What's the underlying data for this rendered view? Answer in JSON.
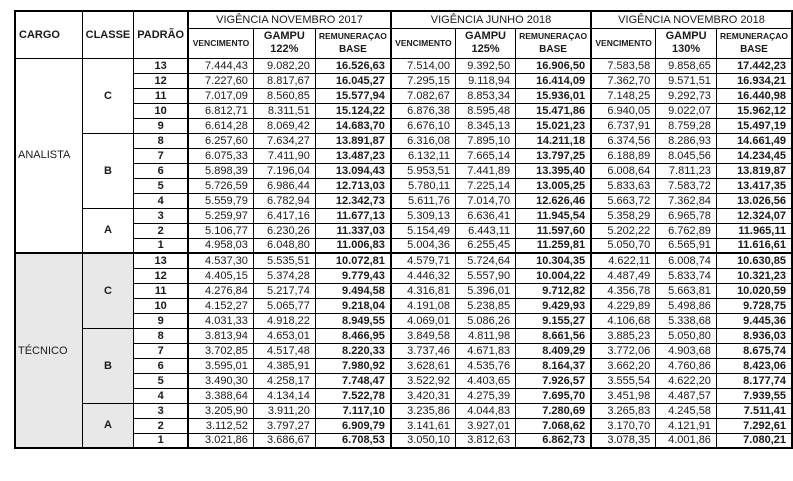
{
  "header": {
    "cargo": "CARGO",
    "classe": "CLASSE",
    "padrao": "PADRÃO",
    "periods": [
      {
        "title": "VIGÊNCIA NOVEMBRO 2017",
        "vencimento": "VENCIMENTO",
        "gampu": "GAMPU",
        "gampu_pct": "122%",
        "remuneracao": "REMUNERAÇAO",
        "base": "BASE"
      },
      {
        "title": "VIGÊNCIA JUNHO 2018",
        "vencimento": "VENCIMENTO",
        "gampu": "GAMPU",
        "gampu_pct": "125%",
        "remuneracao": "REMUNERAÇAO",
        "base": "BASE"
      },
      {
        "title": "VIGÊNCIA NOVEMBRO 2018",
        "vencimento": "VENCIMENTO",
        "gampu": "GAMPU",
        "gampu_pct": "130%",
        "remuneracao": "REMUNERAÇAO",
        "base": "BASE"
      }
    ]
  },
  "shaded_color": "#e8e8e8",
  "groups": [
    {
      "cargo": "ANALISTA",
      "shaded": false,
      "classes": [
        {
          "classe": "C",
          "rows": [
            {
              "padrao": "13",
              "values": [
                "7.444,43",
                "9.082,20",
                "16.526,63",
                "7.514,00",
                "9.392,50",
                "16.906,50",
                "7.583,58",
                "9.858,65",
                "17.442,23"
              ]
            },
            {
              "padrao": "12",
              "values": [
                "7.227,60",
                "8.817,67",
                "16.045,27",
                "7.295,15",
                "9.118,94",
                "16.414,09",
                "7.362,70",
                "9.571,51",
                "16.934,21"
              ]
            },
            {
              "padrao": "11",
              "values": [
                "7.017,09",
                "8.560,85",
                "15.577,94",
                "7.082,67",
                "8.853,34",
                "15.936,01",
                "7.148,25",
                "9.292,73",
                "16.440,98"
              ]
            },
            {
              "padrao": "10",
              "values": [
                "6.812,71",
                "8.311,51",
                "15.124,22",
                "6.876,38",
                "8.595,48",
                "15.471,86",
                "6.940,05",
                "9.022,07",
                "15.962,12"
              ]
            },
            {
              "padrao": "9",
              "values": [
                "6.614,28",
                "8.069,42",
                "14.683,70",
                "6.676,10",
                "8.345,13",
                "15.021,23",
                "6.737,91",
                "8.759,28",
                "15.497,19"
              ]
            }
          ]
        },
        {
          "classe": "B",
          "rows": [
            {
              "padrao": "8",
              "values": [
                "6.257,60",
                "7.634,27",
                "13.891,87",
                "6.316,08",
                "7.895,10",
                "14.211,18",
                "6.374,56",
                "8.286,93",
                "14.661,49"
              ]
            },
            {
              "padrao": "7",
              "values": [
                "6.075,33",
                "7.411,90",
                "13.487,23",
                "6.132,11",
                "7.665,14",
                "13.797,25",
                "6.188,89",
                "8.045,56",
                "14.234,45"
              ]
            },
            {
              "padrao": "6",
              "values": [
                "5.898,39",
                "7.196,04",
                "13.094,43",
                "5.953,51",
                "7.441,89",
                "13.395,40",
                "6.008,64",
                "7.811,23",
                "13.819,87"
              ]
            },
            {
              "padrao": "5",
              "values": [
                "5.726,59",
                "6.986,44",
                "12.713,03",
                "5.780,11",
                "7.225,14",
                "13.005,25",
                "5.833,63",
                "7.583,72",
                "13.417,35"
              ]
            },
            {
              "padrao": "4",
              "values": [
                "5.559,79",
                "6.782,94",
                "12.342,73",
                "5.611,76",
                "7.014,70",
                "12.626,46",
                "5.663,72",
                "7.362,84",
                "13.026,56"
              ]
            }
          ]
        },
        {
          "classe": "A",
          "rows": [
            {
              "padrao": "3",
              "values": [
                "5.259,97",
                "6.417,16",
                "11.677,13",
                "5.309,13",
                "6.636,41",
                "11.945,54",
                "5.358,29",
                "6.965,78",
                "12.324,07"
              ]
            },
            {
              "padrao": "2",
              "values": [
                "5.106,77",
                "6.230,26",
                "11.337,03",
                "5.154,49",
                "6.443,11",
                "11.597,60",
                "5.202,22",
                "6.762,89",
                "11.965,11"
              ]
            },
            {
              "padrao": "1",
              "values": [
                "4.958,03",
                "6.048,80",
                "11.006,83",
                "5.004,36",
                "6.255,45",
                "11.259,81",
                "5.050,70",
                "6.565,91",
                "11.616,61"
              ]
            }
          ]
        }
      ]
    },
    {
      "cargo": "TÉCNICO",
      "shaded": true,
      "classes": [
        {
          "classe": "C",
          "rows": [
            {
              "padrao": "13",
              "values": [
                "4.537,30",
                "5.535,51",
                "10.072,81",
                "4.579,71",
                "5.724,64",
                "10.304,35",
                "4.622,11",
                "6.008,74",
                "10.630,85"
              ]
            },
            {
              "padrao": "12",
              "values": [
                "4.405,15",
                "5.374,28",
                "9.779,43",
                "4.446,32",
                "5.557,90",
                "10.004,22",
                "4.487,49",
                "5.833,74",
                "10.321,23"
              ]
            },
            {
              "padrao": "11",
              "values": [
                "4.276,84",
                "5.217,74",
                "9.494,58",
                "4.316,81",
                "5.396,01",
                "9.712,82",
                "4.356,78",
                "5.663,81",
                "10.020,59"
              ]
            },
            {
              "padrao": "10",
              "values": [
                "4.152,27",
                "5.065,77",
                "9.218,04",
                "4.191,08",
                "5.238,85",
                "9.429,93",
                "4.229,89",
                "5.498,86",
                "9.728,75"
              ]
            },
            {
              "padrao": "9",
              "values": [
                "4.031,33",
                "4.918,22",
                "8.949,55",
                "4.069,01",
                "5.086,26",
                "9.155,27",
                "4.106,68",
                "5.338,68",
                "9.445,36"
              ]
            }
          ]
        },
        {
          "classe": "B",
          "rows": [
            {
              "padrao": "8",
              "values": [
                "3.813,94",
                "4.653,01",
                "8.466,95",
                "3.849,58",
                "4.811,98",
                "8.661,56",
                "3.885,23",
                "5.050,80",
                "8.936,03"
              ]
            },
            {
              "padrao": "7",
              "values": [
                "3.702,85",
                "4.517,48",
                "8.220,33",
                "3.737,46",
                "4.671,83",
                "8.409,29",
                "3.772,06",
                "4.903,68",
                "8.675,74"
              ]
            },
            {
              "padrao": "6",
              "values": [
                "3.595,01",
                "4.385,91",
                "7.980,92",
                "3.628,61",
                "4.535,76",
                "8.164,37",
                "3.662,20",
                "4.760,86",
                "8.423,06"
              ]
            },
            {
              "padrao": "5",
              "values": [
                "3.490,30",
                "4.258,17",
                "7.748,47",
                "3.522,92",
                "4.403,65",
                "7.926,57",
                "3.555,54",
                "4.622,20",
                "8.177,74"
              ]
            },
            {
              "padrao": "4",
              "values": [
                "3.388,64",
                "4.134,14",
                "7.522,78",
                "3.420,31",
                "4.275,39",
                "7.695,70",
                "3.451,98",
                "4.487,57",
                "7.939,55"
              ]
            }
          ]
        },
        {
          "classe": "A",
          "rows": [
            {
              "padrao": "3",
              "values": [
                "3.205,90",
                "3.911,20",
                "7.117,10",
                "3.235,86",
                "4.044,83",
                "7.280,69",
                "3.265,83",
                "4.245,58",
                "7.511,41"
              ]
            },
            {
              "padrao": "2",
              "values": [
                "3.112,52",
                "3.797,27",
                "6.909,79",
                "3.141,61",
                "3.927,01",
                "7.068,62",
                "3.170,70",
                "4.121,91",
                "7.292,61"
              ]
            },
            {
              "padrao": "1",
              "values": [
                "3.021,86",
                "3.686,67",
                "6.708,53",
                "3.050,10",
                "3.812,63",
                "6.862,73",
                "3.078,35",
                "4.001,86",
                "7.080,21"
              ]
            }
          ]
        }
      ]
    }
  ]
}
